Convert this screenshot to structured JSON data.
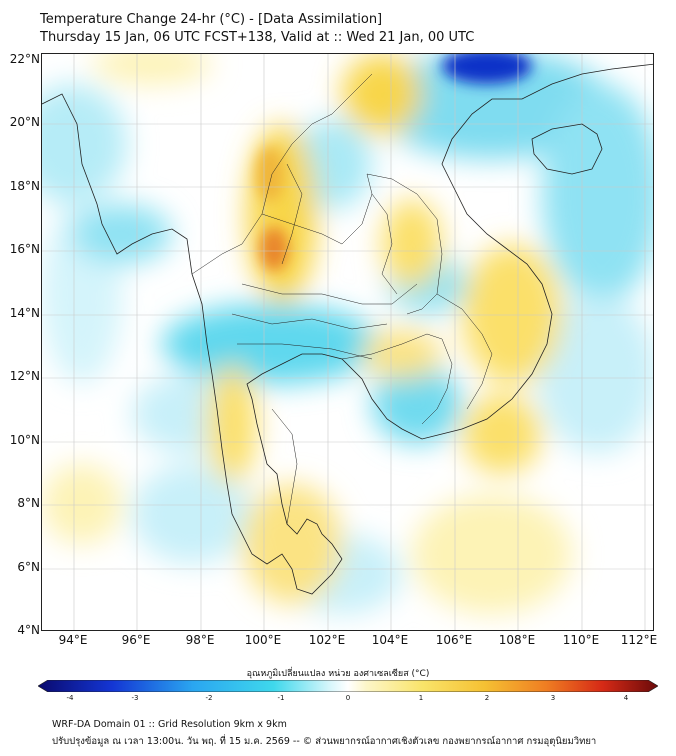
{
  "title": {
    "line1": "Temperature Change 24-hr (°C) - [Data Assimilation]",
    "line2": "Thursday 15 Jan, 06 UTC FCST+138, Valid at :: Wed 21 Jan, 00 UTC"
  },
  "map": {
    "lat_labels": [
      "22°N",
      "20°N",
      "18°N",
      "16°N",
      "14°N",
      "12°N",
      "10°N",
      "8°N",
      "6°N",
      "4°N"
    ],
    "lon_labels": [
      "94°E",
      "96°E",
      "98°E",
      "100°E",
      "102°E",
      "104°E",
      "106°E",
      "108°E",
      "110°E",
      "112°E"
    ],
    "colors": {
      "cold_strong": "#1030c8",
      "cold": "#3fd3ea",
      "cool": "#b6ecf7",
      "neutral": "#ffffff",
      "warm_light": "#fdf3b6",
      "warm": "#f8d64a",
      "hot": "#e9862a"
    }
  },
  "colorbar": {
    "title": "อุณหภูมิเปลี่ยนแปลง หน่วย องศาเซลเซียส (°C)",
    "ticks": [
      "-4",
      "-3",
      "-2",
      "-1",
      "0",
      "1",
      "2",
      "3",
      "4"
    ],
    "min": -4,
    "max": 4
  },
  "footer": {
    "line1": "WRF-DA Domain 01 :: Grid Resolution 9km x 9km",
    "line2": "ปรับปรุงข้อมูล ณ เวลา 13:00น. วัน พฤ. ที่ 15 ม.ค. 2569 -- © ส่วนพยากรณ์อากาศเชิงตัวเลข กองพยากรณ์อากาศ กรมอุตุนิยมวิทยา"
  }
}
